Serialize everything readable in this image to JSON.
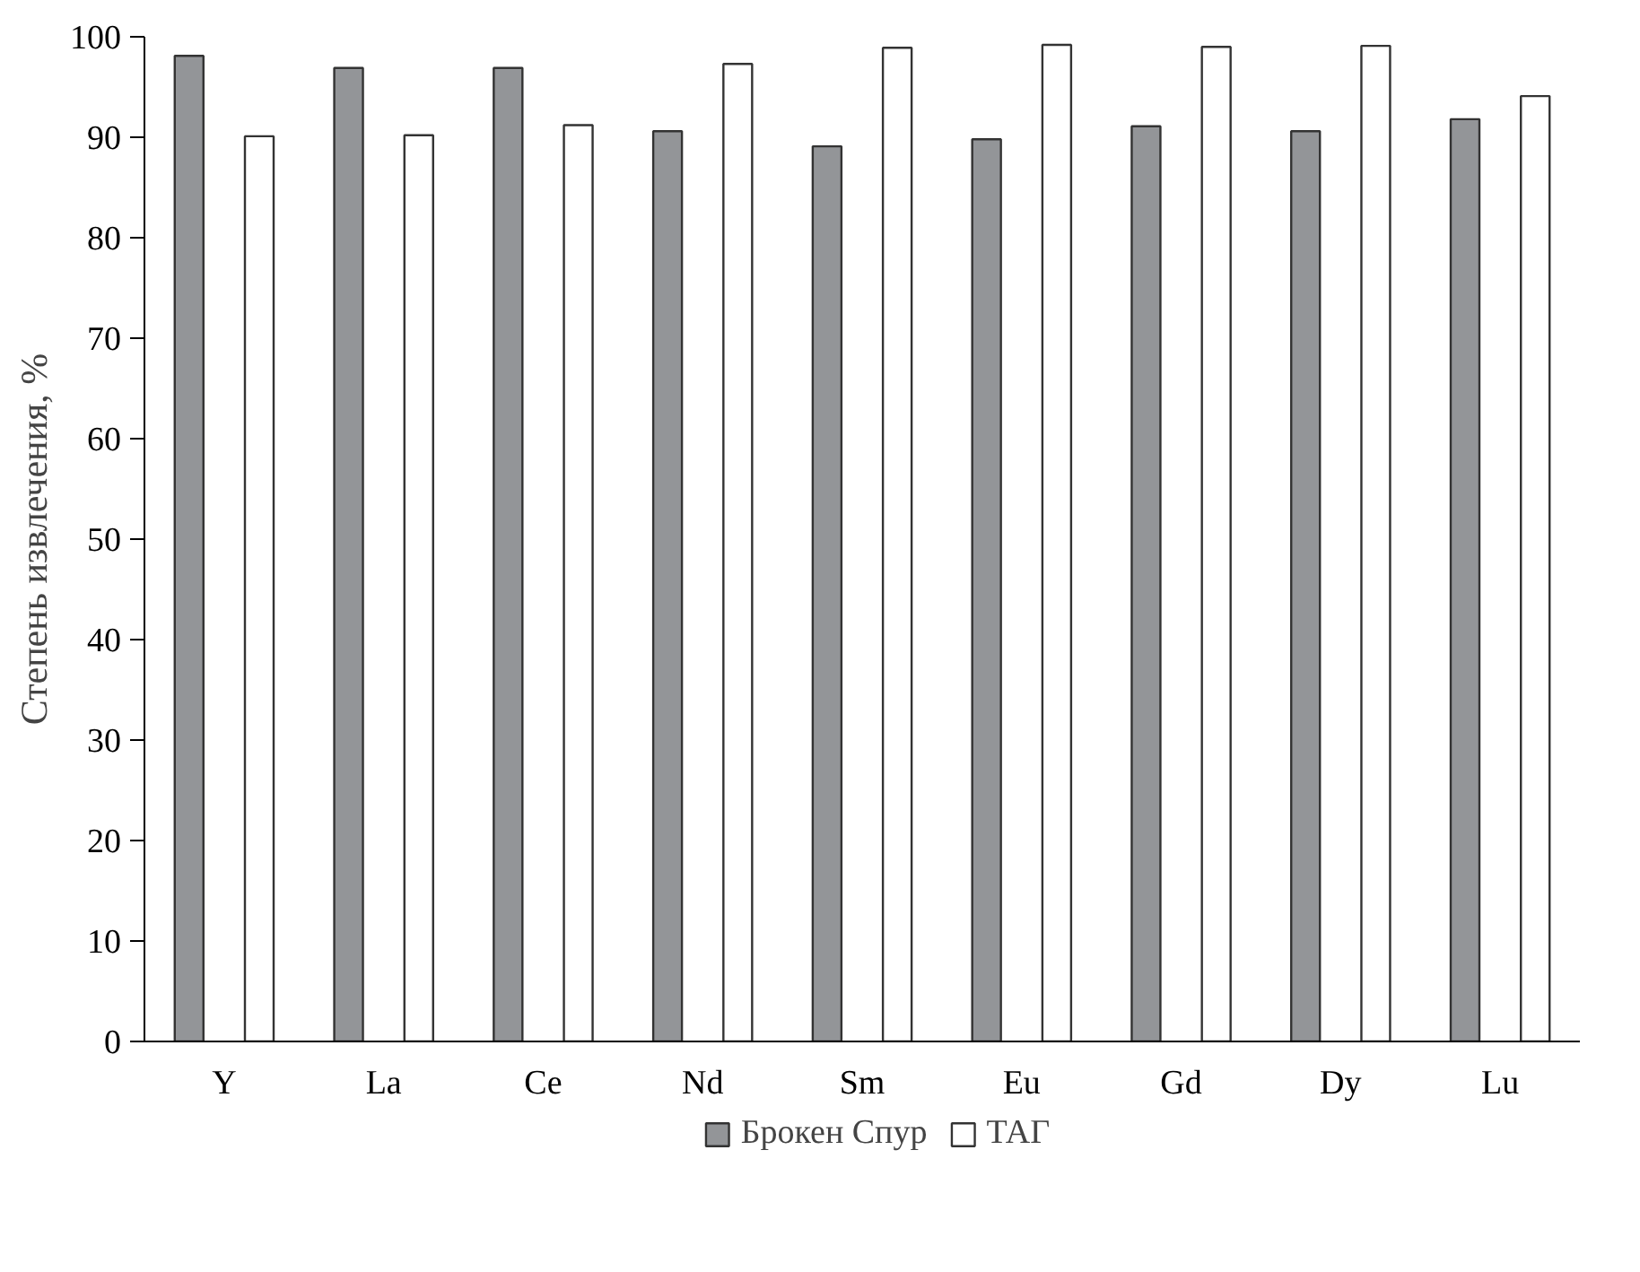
{
  "chart_data": {
    "type": "bar",
    "ylabel": "Степень извлечения, %",
    "categories": [
      "Y",
      "La",
      "Ce",
      "Nd",
      "Sm",
      "Eu",
      "Gd",
      "Dy",
      "Lu"
    ],
    "series": [
      {
        "name": "Брокен Спур",
        "color": "#939598",
        "values": [
          98.1,
          96.9,
          96.9,
          90.6,
          89.1,
          89.8,
          91.1,
          90.6,
          91.8
        ]
      },
      {
        "name": "ТАГ",
        "color": "#ffffff",
        "values": [
          90.1,
          90.2,
          91.2,
          97.3,
          98.9,
          99.2,
          99.0,
          99.1,
          94.1
        ]
      }
    ],
    "ylim": [
      0,
      100
    ],
    "yticks": [
      0,
      10,
      20,
      30,
      40,
      50,
      60,
      70,
      80,
      90,
      100
    ],
    "grid": false,
    "legend": "bottom"
  }
}
